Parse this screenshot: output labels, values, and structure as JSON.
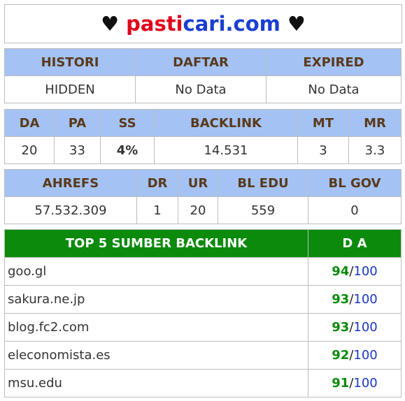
{
  "site": {
    "heart_left": "♥",
    "name_part1": "pasti",
    "name_part2": "cari.com",
    "heart_right": "♥"
  },
  "status": {
    "headers": [
      "HISTORI",
      "DAFTAR",
      "EXPIRED"
    ],
    "values": [
      "HIDDEN",
      "No Data",
      "No Data"
    ]
  },
  "metrics": {
    "headers": [
      "DA",
      "PA",
      "SS",
      "BACKLINK",
      "MT",
      "MR"
    ],
    "values": [
      "20",
      "33",
      "4%",
      "14.531",
      "3",
      "3.3"
    ]
  },
  "ahrefs": {
    "headers": [
      "AHREFS",
      "DR",
      "UR",
      "BL EDU",
      "BL GOV"
    ],
    "values": [
      "57.532.309",
      "1",
      "20",
      "559",
      "0"
    ]
  },
  "top_sources": {
    "header": "TOP 5 SUMBER BACKLINK",
    "da_header": "D A",
    "max": "100",
    "items": [
      {
        "domain": "goo.gl",
        "score": "94"
      },
      {
        "domain": "sakura.ne.jp",
        "score": "93"
      },
      {
        "domain": "blog.fc2.com",
        "score": "93"
      },
      {
        "domain": "eleconomista.es",
        "score": "92"
      },
      {
        "domain": "msu.edu",
        "score": "91"
      }
    ]
  },
  "colors": {
    "header_bg": "#a4c2f4",
    "top_header_bg": "#0b8a0b",
    "accent_red": "#e0001b",
    "accent_blue": "#1a3fd1",
    "score_green": "#0a8a0a"
  }
}
